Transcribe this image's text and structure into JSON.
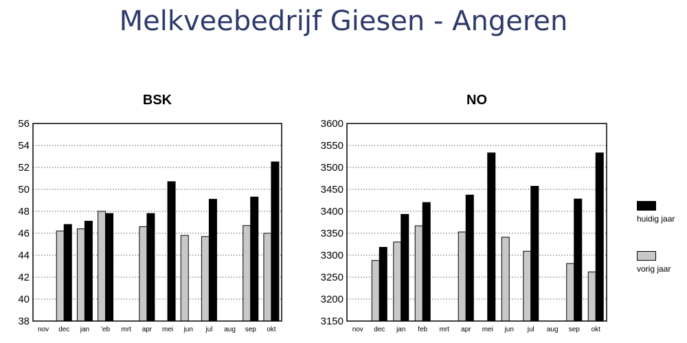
{
  "page_title": "Melkveebedrijf Giesen - Angeren",
  "legend": {
    "current": {
      "label": "huidig jaar",
      "color": "#000000"
    },
    "previous": {
      "label": "vorig jaar",
      "color": "#c8c8c8"
    }
  },
  "chart_data": [
    {
      "type": "bar",
      "title": "BSK",
      "categories": [
        "nov",
        "dec",
        "jan",
        "feb",
        "mrt",
        "apr",
        "mei",
        "jun",
        "jul",
        "aug",
        "sep",
        "okt"
      ],
      "category_labels": [
        "nov",
        "dec",
        "jan",
        "'eb",
        "mrt",
        "apr",
        "mei",
        "jun",
        "jul",
        "aug",
        "sep",
        "okt"
      ],
      "ylim": [
        38,
        56
      ],
      "yticks": [
        "38",
        "40",
        "42",
        "44",
        "46",
        "48",
        "50",
        "52",
        "54",
        "56"
      ],
      "grid": true,
      "series": [
        {
          "name": "vorig jaar",
          "values": [
            null,
            46.2,
            46.4,
            48.0,
            null,
            46.6,
            null,
            45.8,
            45.7,
            null,
            46.7,
            46.0
          ]
        },
        {
          "name": "huidig jaar",
          "values": [
            null,
            46.8,
            47.1,
            47.8,
            null,
            47.8,
            50.7,
            null,
            49.1,
            null,
            49.3,
            52.5
          ]
        }
      ]
    },
    {
      "type": "bar",
      "title": "NO",
      "categories": [
        "nov",
        "dec",
        "jan",
        "feb",
        "mrt",
        "apr",
        "mei",
        "jun",
        "jul",
        "aug",
        "sep",
        "okt"
      ],
      "category_labels": [
        "nov",
        "dec",
        "jan",
        "feb",
        "mrt",
        "apr",
        "mei",
        "jun",
        "jul",
        "aug",
        "sep",
        "okt"
      ],
      "ylim": [
        3150,
        3600
      ],
      "yticks": [
        "3150",
        "3200",
        "3250",
        "3300",
        "3350",
        "3400",
        "3450",
        "3500",
        "3550",
        "3600"
      ],
      "grid": true,
      "series": [
        {
          "name": "vorig jaar",
          "values": [
            null,
            3288,
            3330,
            3367,
            null,
            3353,
            null,
            3341,
            3309,
            null,
            3281,
            3262
          ]
        },
        {
          "name": "huidig jaar",
          "values": [
            null,
            3318,
            3393,
            3420,
            null,
            3437,
            3533,
            null,
            3457,
            null,
            3428,
            3533
          ]
        }
      ]
    }
  ]
}
